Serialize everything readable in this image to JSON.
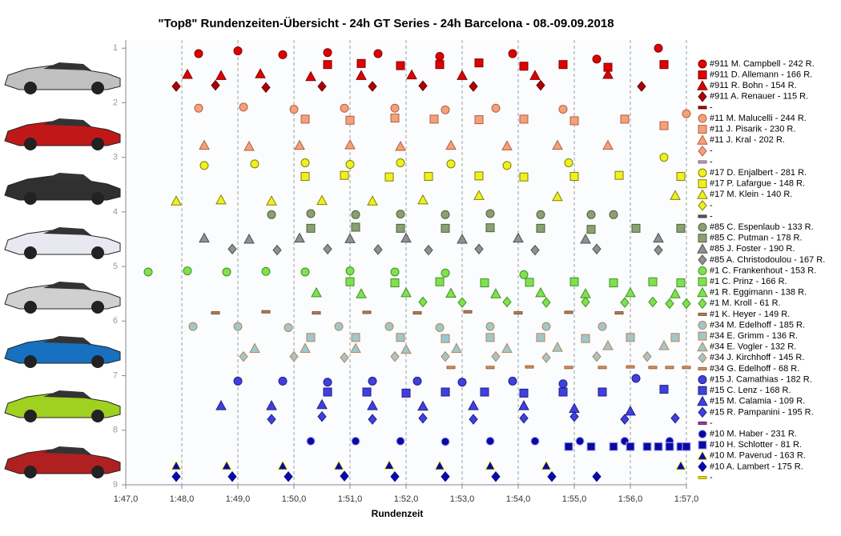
{
  "chart_data": {
    "type": "scatter",
    "title": "\"Top8\" Rundenzeiten-Übersicht  - 24h GT Series  - 24h Barcelona  - 08.-09.09.2018",
    "xlabel": "Rundenzeit",
    "xlim": [
      107,
      117
    ],
    "xticks": [
      {
        "value": 107,
        "label": "1:47,0"
      },
      {
        "value": 108,
        "label": "1:48,0"
      },
      {
        "value": 109,
        "label": "1:49,0"
      },
      {
        "value": 110,
        "label": "1:50,0"
      },
      {
        "value": 111,
        "label": "1:51,0"
      },
      {
        "value": 112,
        "label": "1:52,0"
      },
      {
        "value": 113,
        "label": "1:53,0"
      },
      {
        "value": 114,
        "label": "1:54,0"
      },
      {
        "value": 115,
        "label": "1:55,0"
      },
      {
        "value": 116,
        "label": "1:56,0"
      },
      {
        "value": 117,
        "label": "1:57,0"
      }
    ],
    "ylim": [
      0.85,
      9
    ],
    "y_inverted": true,
    "yticks": [
      1,
      2,
      3,
      4,
      5,
      6,
      7,
      8,
      9
    ],
    "grid": true,
    "series": [
      {
        "name": "#911 M. Campbell - 242 R.",
        "marker": "o",
        "color": "#e00000",
        "edge": "#800000",
        "x": [
          108.3,
          109.0,
          109.8,
          110.6,
          111.5,
          112.6,
          113.9,
          115.4,
          116.5
        ],
        "y": [
          1.1,
          1.05,
          1.12,
          1.08,
          1.1,
          1.15,
          1.1,
          1.2,
          1.0
        ]
      },
      {
        "name": "#911 D. Allemann - 166 R.",
        "marker": "s",
        "color": "#e00000",
        "edge": "#800000",
        "x": [
          110.6,
          111.2,
          111.9,
          112.6,
          113.3,
          114.1,
          114.8,
          115.6,
          116.6
        ],
        "y": [
          1.3,
          1.28,
          1.32,
          1.3,
          1.27,
          1.33,
          1.3,
          1.35,
          1.3
        ]
      },
      {
        "name": "#911 R. Bohn - 154 R.",
        "marker": "^",
        "color": "#e00000",
        "edge": "#800000",
        "x": [
          108.1,
          108.7,
          109.4,
          110.3,
          111.2,
          112.1,
          113.0,
          114.3,
          115.6
        ],
        "y": [
          1.48,
          1.5,
          1.47,
          1.52,
          1.5,
          1.49,
          1.5,
          1.5,
          1.48
        ]
      },
      {
        "name": "#911 A. Renauer - 115 R.",
        "marker": "D",
        "color": "#b00000",
        "edge": "#600000",
        "x": [
          107.9,
          108.6,
          109.5,
          110.5,
          111.4,
          112.3,
          113.2,
          114.4,
          116.2
        ],
        "y": [
          1.7,
          1.68,
          1.72,
          1.7,
          1.7,
          1.69,
          1.7,
          1.68,
          1.7
        ]
      },
      {
        "name": "-",
        "marker": "_",
        "color": "#b00000",
        "edge": "#600000",
        "x": [],
        "y": []
      },
      {
        "name": "#11 M. Malucelli - 244 R.",
        "marker": "o",
        "color": "#f4a07a",
        "edge": "#b06040",
        "x": [
          108.3,
          109.1,
          110.0,
          110.9,
          111.8,
          112.7,
          113.6,
          114.8,
          117.0
        ],
        "y": [
          2.1,
          2.08,
          2.12,
          2.1,
          2.1,
          2.13,
          2.1,
          2.12,
          2.2
        ]
      },
      {
        "name": "#11 J. Pisarik - 230 R.",
        "marker": "s",
        "color": "#f4a07a",
        "edge": "#b06040",
        "x": [
          110.2,
          111.0,
          111.8,
          112.5,
          113.3,
          114.1,
          115.0,
          115.9,
          116.6
        ],
        "y": [
          2.3,
          2.32,
          2.28,
          2.3,
          2.31,
          2.3,
          2.33,
          2.3,
          2.42
        ]
      },
      {
        "name": "#11 J. Kral - 202 R.",
        "marker": "^",
        "color": "#f4a07a",
        "edge": "#b06040",
        "x": [
          108.4,
          109.2,
          110.1,
          111.0,
          111.9,
          112.8,
          113.8,
          114.7,
          115.6
        ],
        "y": [
          2.78,
          2.8,
          2.78,
          2.77,
          2.8,
          2.78,
          2.79,
          2.78,
          2.78
        ]
      },
      {
        "name": "-",
        "marker": "D",
        "color": "#f4a07a",
        "edge": "#b06040",
        "x": [],
        "y": []
      },
      {
        "name": "-",
        "marker": "_",
        "color": "#c0a0c0",
        "edge": "#806080",
        "x": [],
        "y": []
      },
      {
        "name": "#17 D. Enjalbert - 281 R.",
        "marker": "o",
        "color": "#f0f020",
        "edge": "#808000",
        "x": [
          108.4,
          109.3,
          110.2,
          111.0,
          111.9,
          112.8,
          113.8,
          114.9,
          116.6
        ],
        "y": [
          3.15,
          3.12,
          3.1,
          3.13,
          3.1,
          3.12,
          3.15,
          3.1,
          3.0
        ]
      },
      {
        "name": "#17 P. Lafargue - 148 R.",
        "marker": "s",
        "color": "#f0f020",
        "edge": "#808000",
        "x": [
          110.2,
          110.9,
          111.7,
          112.4,
          113.3,
          114.1,
          115.0,
          115.8,
          116.9
        ],
        "y": [
          3.35,
          3.33,
          3.36,
          3.35,
          3.34,
          3.36,
          3.35,
          3.33,
          3.35
        ]
      },
      {
        "name": "#17 M. Klein - 140 R.",
        "marker": "^",
        "color": "#f0f020",
        "edge": "#808000",
        "x": [
          107.9,
          108.7,
          109.6,
          110.5,
          111.4,
          112.3,
          113.3,
          114.7,
          116.8
        ],
        "y": [
          3.8,
          3.78,
          3.8,
          3.79,
          3.8,
          3.78,
          3.7,
          3.72,
          3.7
        ]
      },
      {
        "name": "-",
        "marker": "D",
        "color": "#f0f020",
        "edge": "#808000",
        "x": [],
        "y": []
      },
      {
        "name": "-",
        "marker": "_",
        "color": "#606060",
        "edge": "#303030",
        "x": [],
        "y": []
      },
      {
        "name": "#85 C. Espenlaub - 133 R.",
        "marker": "o",
        "color": "#8aa070",
        "edge": "#506040",
        "x": [
          109.6,
          110.3,
          111.1,
          111.9,
          112.7,
          113.5,
          114.4,
          115.3,
          115.7
        ],
        "y": [
          4.05,
          4.03,
          4.05,
          4.04,
          4.05,
          4.03,
          4.05,
          4.05,
          4.05
        ]
      },
      {
        "name": "#85 C. Putman - 178 R.",
        "marker": "s",
        "color": "#8aa070",
        "edge": "#506040",
        "x": [
          110.3,
          111.1,
          111.9,
          112.7,
          113.5,
          114.4,
          115.3,
          116.1,
          116.9
        ],
        "y": [
          4.3,
          4.28,
          4.3,
          4.3,
          4.29,
          4.3,
          4.32,
          4.3,
          4.3
        ]
      },
      {
        "name": "#85 J. Foster - 190 R.",
        "marker": "^",
        "color": "#909090",
        "edge": "#505050",
        "x": [
          108.4,
          109.2,
          110.1,
          111.0,
          112.0,
          113.0,
          114.0,
          115.2,
          116.5
        ],
        "y": [
          4.48,
          4.5,
          4.48,
          4.49,
          4.48,
          4.5,
          4.48,
          4.5,
          4.48
        ]
      },
      {
        "name": "#85 A. Christodoulou - 167 R.",
        "marker": "D",
        "color": "#909090",
        "edge": "#505050",
        "x": [
          108.9,
          109.7,
          110.6,
          111.5,
          112.4,
          113.3,
          114.3,
          115.4,
          116.5
        ],
        "y": [
          4.68,
          4.7,
          4.68,
          4.69,
          4.7,
          4.68,
          4.7,
          4.68,
          4.7
        ]
      },
      {
        "name": "#1 C. Frankenhout - 153 R.",
        "marker": "o",
        "color": "#80e050",
        "edge": "#409020",
        "x": [
          107.4,
          108.1,
          108.8,
          109.5,
          110.2,
          111.0,
          111.8,
          112.7,
          114.1
        ],
        "y": [
          5.1,
          5.08,
          5.1,
          5.09,
          5.1,
          5.08,
          5.1,
          5.12,
          5.15
        ]
      },
      {
        "name": "#1 C. Prinz - 166 R.",
        "marker": "s",
        "color": "#80e050",
        "edge": "#409020",
        "x": [
          111.0,
          111.8,
          112.6,
          113.4,
          114.2,
          115.0,
          115.7,
          116.4,
          116.9
        ],
        "y": [
          5.28,
          5.3,
          5.28,
          5.3,
          5.29,
          5.28,
          5.3,
          5.28,
          5.3
        ]
      },
      {
        "name": "#1 R. Eggimann - 138 R.",
        "marker": "^",
        "color": "#80e050",
        "edge": "#409020",
        "x": [
          110.4,
          111.2,
          112.0,
          112.8,
          113.6,
          114.4,
          115.2,
          116.0,
          116.8
        ],
        "y": [
          5.48,
          5.5,
          5.48,
          5.49,
          5.5,
          5.48,
          5.5,
          5.48,
          5.5
        ]
      },
      {
        "name": "#1 M. Kroll - 61 R.",
        "marker": "D",
        "color": "#80e050",
        "edge": "#409020",
        "x": [
          112.3,
          113.0,
          113.8,
          114.5,
          115.2,
          115.9,
          116.4,
          116.7,
          117.0
        ],
        "y": [
          5.65,
          5.66,
          5.65,
          5.66,
          5.65,
          5.66,
          5.65,
          5.68,
          5.68
        ]
      },
      {
        "name": "#1 K. Heyer - 149 R.",
        "marker": "_",
        "color": "#b08060",
        "edge": "#805030",
        "x": [
          108.6,
          109.5,
          110.4,
          111.3,
          112.2,
          113.1,
          114.0,
          114.9,
          115.8
        ],
        "y": [
          5.85,
          5.83,
          5.85,
          5.84,
          5.85,
          5.83,
          5.85,
          5.84,
          5.85
        ]
      },
      {
        "name": "#34 M. Edelhoff - 185 R.",
        "marker": "o",
        "color": "#9cc8d0",
        "edge": "#c08050",
        "x": [
          108.2,
          109.0,
          109.9,
          110.8,
          111.7,
          112.6,
          113.5,
          114.5,
          115.5
        ],
        "y": [
          6.1,
          6.1,
          6.12,
          6.1,
          6.1,
          6.12,
          6.1,
          6.1,
          6.1
        ]
      },
      {
        "name": "#34 E. Grimm - 136 R.",
        "marker": "s",
        "color": "#9cc8d0",
        "edge": "#c08050",
        "x": [
          110.3,
          111.1,
          111.9,
          112.7,
          113.5,
          114.4,
          115.2,
          116.0,
          116.8
        ],
        "y": [
          6.3,
          6.3,
          6.3,
          6.32,
          6.3,
          6.3,
          6.32,
          6.3,
          6.3
        ]
      },
      {
        "name": "#34 E. Vogler - 132 R.",
        "marker": "^",
        "color": "#9cc8d0",
        "edge": "#c08050",
        "x": [
          109.3,
          110.2,
          111.1,
          112.0,
          112.9,
          113.8,
          114.7,
          115.6,
          116.6
        ],
        "y": [
          6.5,
          6.5,
          6.5,
          6.52,
          6.5,
          6.5,
          6.48,
          6.45,
          6.45
        ]
      },
      {
        "name": "#34 J. Kirchhoff - 145 R.",
        "marker": "D",
        "color": "#9cc8d0",
        "edge": "#c08050",
        "x": [
          109.1,
          110.0,
          110.9,
          111.8,
          112.7,
          113.6,
          114.5,
          115.4,
          116.3
        ],
        "y": [
          6.65,
          6.65,
          6.67,
          6.65,
          6.65,
          6.65,
          6.67,
          6.65,
          6.65
        ]
      },
      {
        "name": "#34 G. Edelhoff - 68 R.",
        "marker": "_",
        "color": "#d09060",
        "edge": "#a06030",
        "x": [
          112.8,
          113.5,
          114.2,
          114.9,
          115.5,
          116.0,
          116.4,
          116.7,
          117.0
        ],
        "y": [
          6.85,
          6.85,
          6.84,
          6.85,
          6.85,
          6.84,
          6.85,
          6.85,
          6.85
        ]
      },
      {
        "name": "#15 J. Camathias - 182 R.",
        "marker": "o",
        "color": "#4040e0",
        "edge": "#202080",
        "x": [
          109.0,
          109.8,
          110.6,
          111.4,
          112.2,
          113.0,
          113.9,
          114.8,
          116.1
        ],
        "y": [
          7.1,
          7.1,
          7.12,
          7.1,
          7.1,
          7.12,
          7.1,
          7.15,
          7.05
        ]
      },
      {
        "name": "#15 C. Lenz - 168 R.",
        "marker": "s",
        "color": "#4040e0",
        "edge": "#202080",
        "x": [
          110.6,
          111.3,
          112.0,
          112.7,
          113.4,
          114.1,
          114.8,
          115.5,
          116.6
        ],
        "y": [
          7.3,
          7.3,
          7.32,
          7.3,
          7.3,
          7.32,
          7.3,
          7.3,
          7.25
        ]
      },
      {
        "name": "#15 M. Calamia - 109 R.",
        "marker": "^",
        "color": "#4040e0",
        "edge": "#202080",
        "x": [
          108.7,
          109.6,
          110.5,
          111.4,
          112.3,
          113.2,
          114.1,
          115.0,
          116.0
        ],
        "y": [
          7.55,
          7.55,
          7.53,
          7.55,
          7.56,
          7.55,
          7.55,
          7.6,
          7.65
        ]
      },
      {
        "name": "#15 R. Pampanini - 195 R.",
        "marker": "D",
        "color": "#4040e0",
        "edge": "#202080",
        "x": [
          109.6,
          110.5,
          111.4,
          112.3,
          113.2,
          114.1,
          115.0,
          115.9,
          116.8
        ],
        "y": [
          7.8,
          7.75,
          7.8,
          7.78,
          7.8,
          7.78,
          7.75,
          7.8,
          7.78
        ]
      },
      {
        "name": "-",
        "marker": "_",
        "color": "#a040a0",
        "edge": "#602060",
        "x": [],
        "y": []
      },
      {
        "name": "#10 M. Haber - 231 R.",
        "marker": "o",
        "color": "#0a0aa0",
        "edge": "#b0b0ff",
        "x": [
          110.3,
          111.1,
          111.9,
          112.7,
          113.5,
          114.3,
          115.1,
          115.9,
          116.7
        ],
        "y": [
          8.2,
          8.2,
          8.2,
          8.21,
          8.2,
          8.2,
          8.2,
          8.2,
          8.2
        ]
      },
      {
        "name": "#10 H. Schlotter - 81 R.",
        "marker": "s",
        "color": "#0a0aa0",
        "edge": "#b0b0ff",
        "x": [
          114.9,
          115.3,
          115.7,
          116.0,
          116.3,
          116.5,
          116.7,
          116.9,
          117.0
        ],
        "y": [
          8.3,
          8.3,
          8.3,
          8.3,
          8.3,
          8.3,
          8.3,
          8.3,
          8.3
        ]
      },
      {
        "name": "#10 M. Paverud - 163 R.",
        "marker": "^",
        "color": "#0a0aa0",
        "edge": "#ffff40",
        "x": [
          107.9,
          108.8,
          109.8,
          110.8,
          111.7,
          112.6,
          113.5,
          114.5,
          116.9
        ],
        "y": [
          8.65,
          8.65,
          8.65,
          8.65,
          8.64,
          8.65,
          8.65,
          8.65,
          8.65
        ]
      },
      {
        "name": "#10 A. Lambert - 175 R.",
        "marker": "D",
        "color": "#0a0aa0",
        "edge": "#0a0aa0",
        "x": [
          107.9,
          108.9,
          109.9,
          110.9,
          111.8,
          112.7,
          113.6,
          114.6,
          115.4
        ],
        "y": [
          8.85,
          8.85,
          8.85,
          8.84,
          8.85,
          8.85,
          8.85,
          8.85,
          8.85
        ]
      },
      {
        "name": "-",
        "marker": "_",
        "color": "#e0e000",
        "edge": "#a0a000",
        "x": [],
        "y": []
      }
    ]
  }
}
